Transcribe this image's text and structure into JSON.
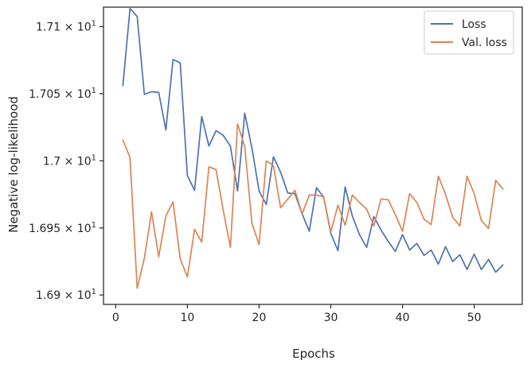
{
  "chart_data": {
    "type": "line",
    "title": "",
    "xlabel": "Epochs",
    "ylabel": "Negative log-likelihood",
    "xlim": [
      -1.7,
      56.7
    ],
    "ylim": [
      16.893,
      17.1145
    ],
    "x_ticks": [
      0,
      10,
      20,
      30,
      40,
      50
    ],
    "y_ticks": [
      {
        "value": 16.9,
        "mantissa": "1.69",
        "base": "10",
        "exp": "1"
      },
      {
        "value": 16.95,
        "mantissa": "1.695",
        "base": "10",
        "exp": "1"
      },
      {
        "value": 17.0,
        "mantissa": "1.7",
        "base": "10",
        "exp": "1"
      },
      {
        "value": 17.05,
        "mantissa": "1.705",
        "base": "10",
        "exp": "1"
      },
      {
        "value": 17.1,
        "mantissa": "1.71",
        "base": "10",
        "exp": "1"
      }
    ],
    "grid": false,
    "legend_position": "top-right",
    "x": [
      1,
      2,
      3,
      4,
      5,
      6,
      7,
      8,
      9,
      10,
      11,
      12,
      13,
      14,
      15,
      16,
      17,
      18,
      19,
      20,
      21,
      22,
      23,
      24,
      25,
      26,
      27,
      28,
      29,
      30,
      31,
      32,
      33,
      34,
      35,
      36,
      37,
      38,
      39,
      40,
      41,
      42,
      43,
      44,
      45,
      46,
      47,
      48,
      49,
      50,
      51,
      52,
      53,
      54
    ],
    "series": [
      {
        "name": "Loss",
        "color": "#4c72b0",
        "values": [
          17.056,
          17.1135,
          17.1075,
          17.0495,
          17.0515,
          17.051,
          17.023,
          17.0755,
          17.073,
          16.989,
          16.978,
          17.033,
          17.011,
          17.0225,
          17.019,
          17.011,
          16.9775,
          17.0355,
          17.0095,
          16.9775,
          16.9675,
          17.003,
          16.9915,
          16.976,
          16.9755,
          16.9605,
          16.9475,
          16.98,
          16.973,
          16.946,
          16.933,
          16.9805,
          16.959,
          16.945,
          16.9355,
          16.9585,
          16.9485,
          16.94,
          16.9325,
          16.945,
          16.9335,
          16.9385,
          16.9295,
          16.9335,
          16.923,
          16.936,
          16.925,
          16.93,
          16.919,
          16.9305,
          16.919,
          16.9265,
          16.917,
          16.9225
        ]
      },
      {
        "name": "Val. loss",
        "color": "#dd8452",
        "values": [
          17.0155,
          17.0025,
          16.905,
          16.9275,
          16.962,
          16.9285,
          16.959,
          16.9695,
          16.927,
          16.9135,
          16.949,
          16.9395,
          16.9955,
          16.9935,
          16.963,
          16.9355,
          17.0275,
          17.0105,
          16.9535,
          16.9375,
          17.0,
          16.9965,
          16.965,
          16.9715,
          16.978,
          16.9605,
          16.9745,
          16.9745,
          16.973,
          16.947,
          16.967,
          16.952,
          16.9745,
          16.969,
          16.964,
          16.9515,
          16.9715,
          16.971,
          16.96,
          16.9475,
          16.9755,
          16.969,
          16.9565,
          16.9525,
          16.9885,
          16.975,
          16.958,
          16.9515,
          16.9885,
          16.9755,
          16.9555,
          16.9495,
          16.9855,
          16.979
        ]
      }
    ]
  }
}
